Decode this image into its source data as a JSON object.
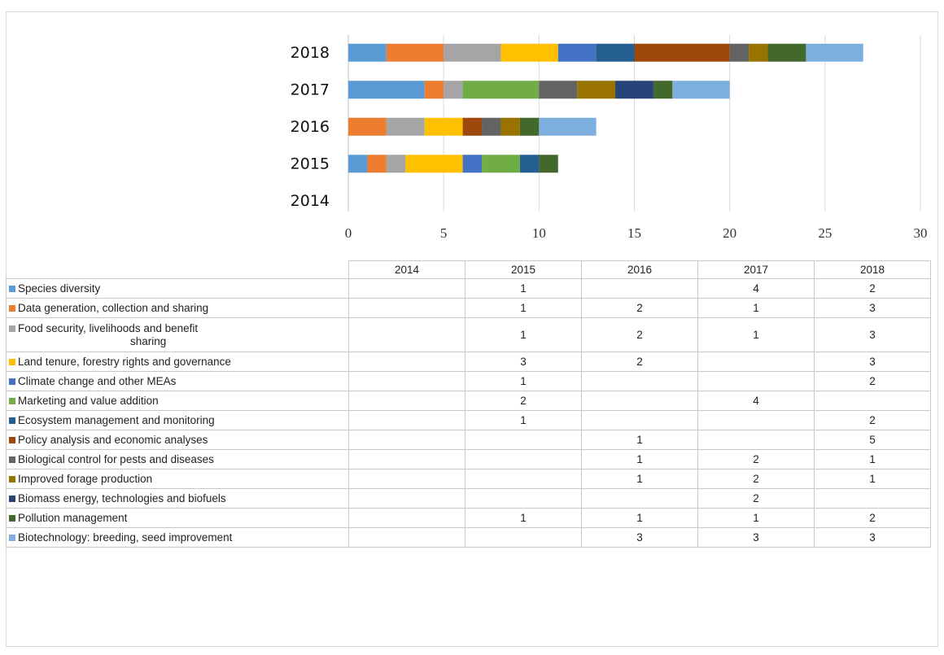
{
  "chart_data": {
    "type": "bar",
    "orientation": "horizontal",
    "stacked": true,
    "categories": [
      "2014",
      "2015",
      "2016",
      "2017",
      "2018"
    ],
    "xlim": [
      0,
      30
    ],
    "x_ticks": [
      0,
      5,
      10,
      15,
      20,
      25,
      30
    ],
    "grid": "vertical",
    "legend": "data table below chart",
    "series": [
      {
        "name": "Species diversity",
        "color": "#5B9BD5",
        "values": [
          null,
          1,
          null,
          4,
          2
        ]
      },
      {
        "name": "Data generation, collection and sharing",
        "color": "#ED7D31",
        "values": [
          null,
          1,
          2,
          1,
          3
        ]
      },
      {
        "name": "Food security, livelihoods and benefit sharing",
        "color": "#A5A5A5",
        "values": [
          null,
          1,
          2,
          1,
          3
        ]
      },
      {
        "name": "Land tenure, forestry rights and governance",
        "color": "#FFC000",
        "values": [
          null,
          3,
          2,
          null,
          3
        ]
      },
      {
        "name": "Climate change and other MEAs",
        "color": "#4472C4",
        "values": [
          null,
          1,
          null,
          null,
          2
        ]
      },
      {
        "name": "Marketing and value addition",
        "color": "#70AD47",
        "values": [
          null,
          2,
          null,
          4,
          null
        ]
      },
      {
        "name": "Ecosystem management and monitoring",
        "color": "#255E91",
        "values": [
          null,
          1,
          null,
          null,
          2
        ]
      },
      {
        "name": "Policy analysis and economic analyses",
        "color": "#9E480E",
        "values": [
          null,
          null,
          1,
          null,
          5
        ]
      },
      {
        "name": "Biological control for pests and diseases",
        "color": "#636363",
        "values": [
          null,
          null,
          1,
          2,
          1
        ]
      },
      {
        "name": "Improved forage production",
        "color": "#997300",
        "values": [
          null,
          null,
          1,
          2,
          1
        ]
      },
      {
        "name": "Biomass energy, technologies and biofuels",
        "color": "#264478",
        "values": [
          null,
          null,
          null,
          2,
          null
        ]
      },
      {
        "name": "Pollution management",
        "color": "#43682B",
        "values": [
          null,
          1,
          1,
          1,
          2
        ]
      },
      {
        "name": "Biotechnology: breeding, seed improvement",
        "color": "#7CAFDD",
        "values": [
          null,
          null,
          3,
          3,
          3
        ]
      }
    ]
  }
}
